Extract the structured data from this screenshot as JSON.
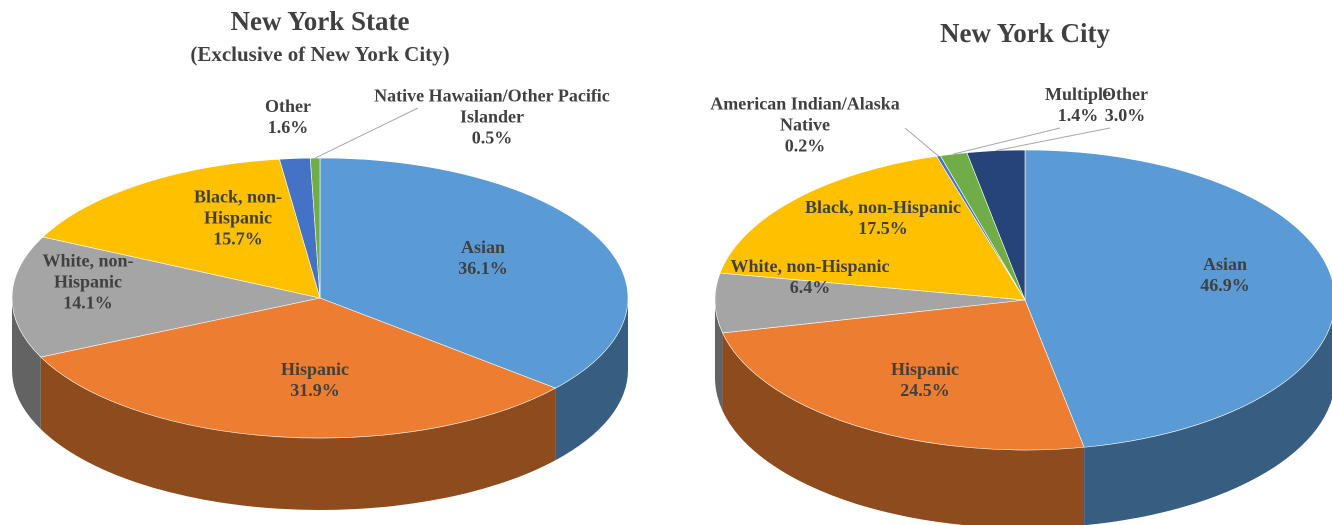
{
  "chart_data": [
    {
      "type": "pie",
      "title": "New York State",
      "subtitle": "(Exclusive of New York City)",
      "categories": [
        "Asian",
        "Hispanic",
        "White, non-Hispanic",
        "Black, non-Hispanic",
        "Other",
        "Native Hawaiian/Other Pacific Islander"
      ],
      "values": [
        36.1,
        31.9,
        14.1,
        15.7,
        1.6,
        0.5
      ],
      "value_labels": [
        "36.1%",
        "31.9%",
        "14.1%",
        "15.7%",
        "1.6%",
        "0.5%"
      ],
      "colors": [
        "#5b9bd5",
        "#ed7d31",
        "#a5a5a5",
        "#ffc000",
        "#4472c4",
        "#70ad47"
      ]
    },
    {
      "type": "pie",
      "title": "New York City",
      "categories": [
        "Asian",
        "Hispanic",
        "White, non-Hispanic",
        "Black, non-Hispanic",
        "American Indian/Alaska Native",
        "Multiple",
        "Other"
      ],
      "values": [
        46.9,
        24.5,
        6.4,
        17.5,
        0.2,
        1.4,
        3.0
      ],
      "value_labels": [
        "46.9%",
        "24.5%",
        "6.4%",
        "17.5%",
        "0.2%",
        "1.4%",
        "3.0%"
      ],
      "colors": [
        "#5b9bd5",
        "#ed7d31",
        "#a5a5a5",
        "#ffc000",
        "#4472c4",
        "#70ad47",
        "#264478"
      ]
    }
  ]
}
